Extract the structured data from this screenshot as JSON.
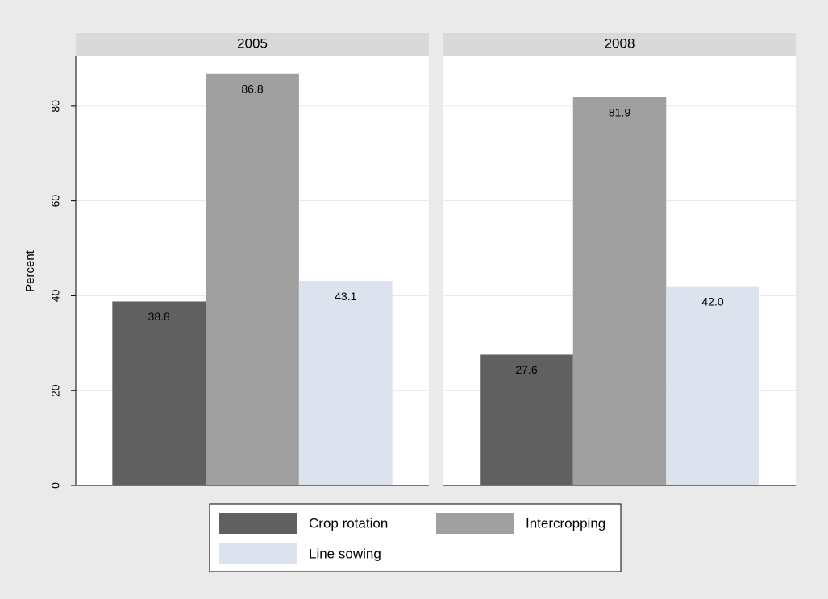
{
  "chart_data": {
    "type": "bar",
    "facets": true,
    "y_label": "Percent",
    "categories": [
      "2005",
      "2008"
    ],
    "series": [
      {
        "name": "Crop rotation",
        "color": "#606060",
        "values": [
          38.8,
          27.6
        ],
        "value_labels": [
          "38.8",
          "27.6"
        ]
      },
      {
        "name": "Intercropping",
        "color": "#a0a0a0",
        "values": [
          86.8,
          81.9
        ],
        "value_labels": [
          "86.8",
          "81.9"
        ]
      },
      {
        "name": "Line sowing",
        "color": "#dde2ef",
        "values": [
          43.1,
          42.0
        ],
        "value_labels": [
          "43.1",
          "42.0"
        ]
      }
    ],
    "ylim": [
      0,
      90.5
    ],
    "yticks": [
      0,
      20,
      40,
      60,
      80
    ],
    "grid": true,
    "legend": "bottom"
  }
}
